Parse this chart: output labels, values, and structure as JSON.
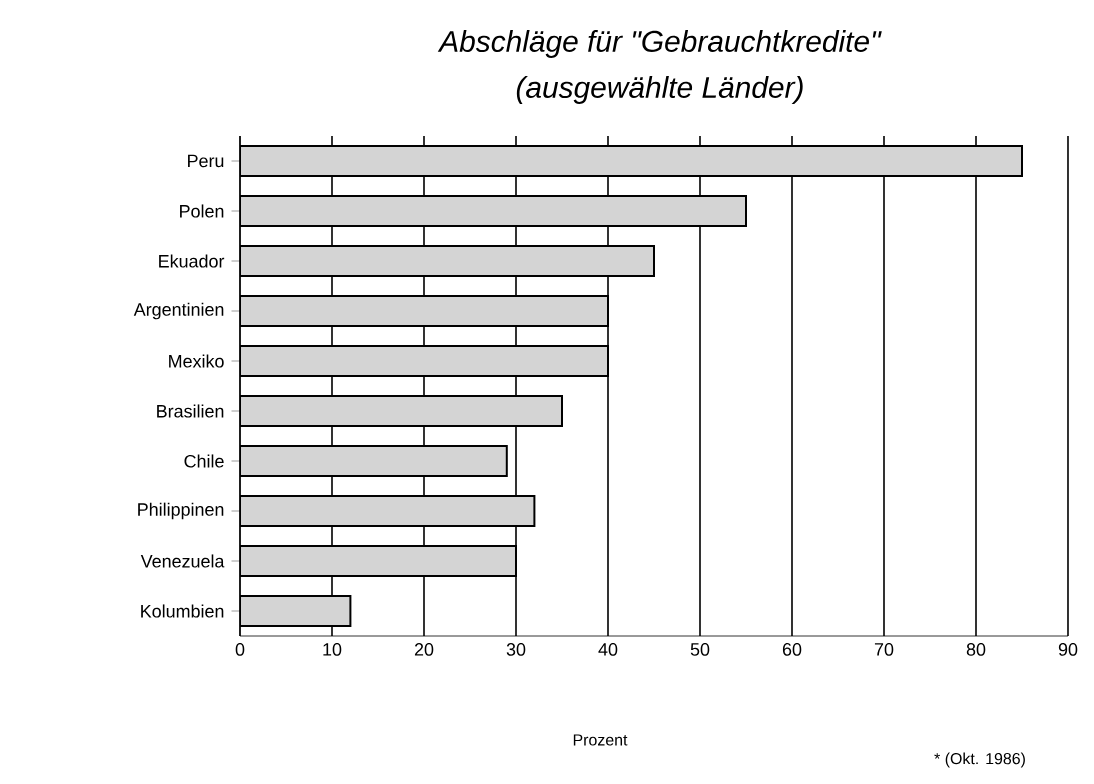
{
  "chart_data": {
    "type": "bar",
    "orientation": "horizontal",
    "title": "Abschläge für \"Gebrauchtkredite\"",
    "subtitle": "(ausgewählte Länder)",
    "xlabel": "Prozent",
    "annotations": [
      "* (Okt. 1986)"
    ],
    "categories": [
      "Peru",
      "Polen",
      "Ekuador",
      "Argentinien",
      "Mexiko",
      "Brasilien",
      "Chile",
      "Philippinen",
      "Venezuela",
      "Kolumbien"
    ],
    "values": [
      85,
      55,
      45,
      40,
      40,
      35,
      29,
      32,
      30,
      12
    ],
    "color": "#d4d4d4",
    "xlim": [
      0,
      90
    ],
    "xticks": [
      0,
      10,
      20,
      30,
      40,
      50,
      60,
      70,
      80,
      90
    ],
    "grid": "x"
  }
}
